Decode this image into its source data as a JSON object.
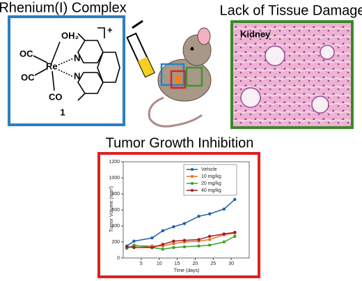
{
  "left_panel": {
    "title": "Rhenium(I) Complex",
    "ligands": [
      "OH₂",
      "OC",
      "OC",
      "CO"
    ],
    "metal": "Re",
    "nitrogens": [
      "N",
      "N"
    ],
    "charge": "+",
    "compound_label": "1"
  },
  "right_panel": {
    "title": "Lack of Tissue Damage",
    "image_label": "Kidney"
  },
  "chart_data": {
    "type": "line",
    "title": "Tumor Growth Inhibition",
    "x_label": "Time (days)",
    "y_label": "Tumor Volume (mm³)",
    "x": [
      1,
      3,
      8,
      11,
      14,
      17,
      21,
      24,
      28,
      31
    ],
    "series": [
      {
        "name": "Vehicle",
        "color": "#1f5fa8",
        "values": [
          150,
          210,
          250,
          340,
          390,
          430,
          520,
          550,
          610,
          730
        ]
      },
      {
        "name": "10 mg/kg",
        "color": "#f07020",
        "values": [
          130,
          150,
          150,
          150,
          180,
          200,
          210,
          230,
          290,
          310
        ]
      },
      {
        "name": "20 mg/kg",
        "color": "#3aa02a",
        "values": [
          120,
          160,
          130,
          110,
          130,
          140,
          150,
          160,
          200,
          270
        ]
      },
      {
        "name": "40 mg/kg",
        "color": "#a01a28",
        "values": [
          140,
          130,
          130,
          170,
          210,
          220,
          230,
          270,
          300,
          320
        ]
      }
    ],
    "xlim": [
      0,
      35
    ],
    "xticks": [
      5,
      10,
      15,
      20,
      25,
      30
    ],
    "ylim": [
      0,
      1200
    ],
    "yticks": [
      0,
      200,
      400,
      600,
      800,
      1000,
      1200
    ],
    "legend": "upper right"
  }
}
